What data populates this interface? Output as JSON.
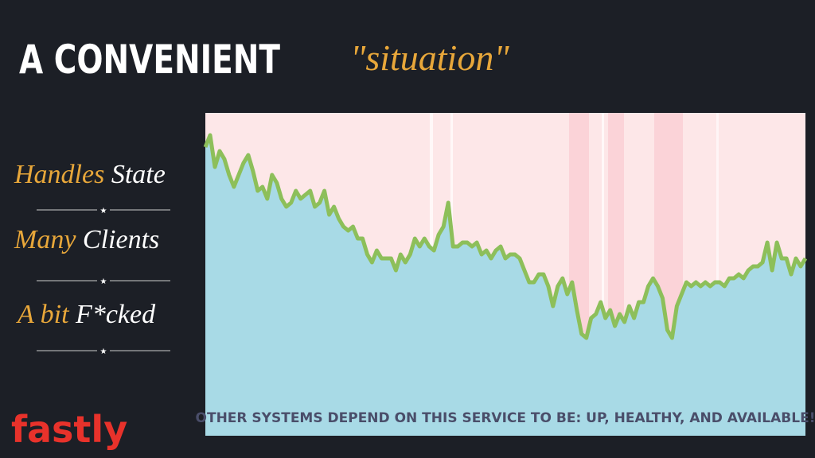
{
  "title": {
    "main": "A CONVENIENT",
    "accent": "\"situation\""
  },
  "items": [
    {
      "accent": "Handles",
      "text": "State"
    },
    {
      "accent": "Many",
      "text": "Clients"
    },
    {
      "accent": "A bit",
      "text": "F*cked"
    }
  ],
  "logo": "fastly",
  "chart_data": {
    "type": "area",
    "caption": "OTHER SYSTEMS DEPEND ON THIS SERVICE TO BE: UP, HEALTHY, AND AVAILABLE!",
    "color": "#a8dae6",
    "line_color": "#8dbf5a",
    "ylim": [
      0,
      406
    ],
    "values": [
      363,
      378,
      338,
      358,
      348,
      328,
      313,
      328,
      343,
      353,
      333,
      308,
      313,
      298,
      328,
      318,
      298,
      288,
      293,
      308,
      298,
      303,
      308,
      288,
      293,
      308,
      278,
      288,
      273,
      263,
      258,
      263,
      248,
      248,
      228,
      218,
      233,
      223,
      223,
      223,
      208,
      228,
      218,
      228,
      248,
      238,
      248,
      238,
      233,
      253,
      263,
      293,
      238,
      238,
      243,
      243,
      238,
      243,
      228,
      233,
      223,
      233,
      238,
      223,
      228,
      228,
      223,
      208,
      193,
      193,
      203,
      203,
      188,
      163,
      188,
      198,
      178,
      193,
      158,
      128,
      123,
      148,
      153,
      168,
      148,
      158,
      138,
      153,
      143,
      163,
      148,
      168,
      168,
      188,
      198,
      188,
      173,
      133,
      123,
      163,
      178,
      193,
      188,
      193,
      188,
      193,
      188,
      193,
      193,
      188,
      198,
      198,
      203,
      198,
      208,
      213,
      213,
      218,
      243,
      208,
      243,
      223,
      223,
      203,
      223,
      213,
      223
    ]
  }
}
